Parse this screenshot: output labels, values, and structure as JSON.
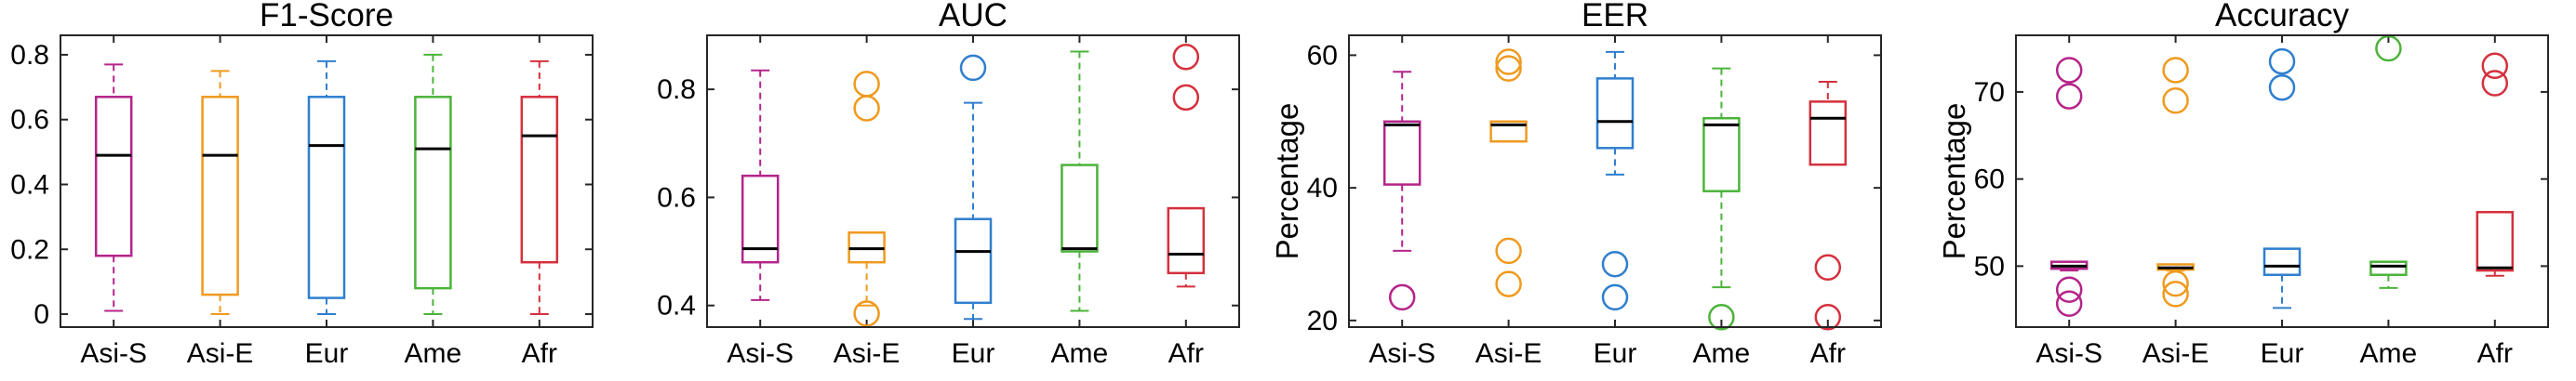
{
  "chart_data": [
    {
      "type": "boxplot",
      "title": "F1-Score",
      "ylabel": "",
      "categories": [
        "Asi-S",
        "Asi-E",
        "Eur",
        "Ame",
        "Afr"
      ],
      "ylim": [
        -0.04,
        0.86
      ],
      "yticks": [
        0,
        0.2,
        0.4,
        0.6,
        0.8
      ],
      "yticklabels": [
        "0",
        "0.2",
        "0.4",
        "0.6",
        "0.8"
      ],
      "boxes": [
        {
          "category": "Asi-S",
          "whisker_low": 0.01,
          "q1": 0.18,
          "median": 0.49,
          "q3": 0.67,
          "whisker_high": 0.77,
          "outliers": []
        },
        {
          "category": "Asi-E",
          "whisker_low": 0.0,
          "q1": 0.06,
          "median": 0.49,
          "q3": 0.67,
          "whisker_high": 0.75,
          "outliers": []
        },
        {
          "category": "Eur",
          "whisker_low": 0.0,
          "q1": 0.05,
          "median": 0.52,
          "q3": 0.67,
          "whisker_high": 0.78,
          "outliers": []
        },
        {
          "category": "Ame",
          "whisker_low": 0.0,
          "q1": 0.08,
          "median": 0.51,
          "q3": 0.67,
          "whisker_high": 0.8,
          "outliers": []
        },
        {
          "category": "Afr",
          "whisker_low": 0.0,
          "q1": 0.16,
          "median": 0.55,
          "q3": 0.67,
          "whisker_high": 0.78,
          "outliers": []
        }
      ]
    },
    {
      "type": "boxplot",
      "title": "AUC",
      "ylabel": "",
      "categories": [
        "Asi-S",
        "Asi-E",
        "Eur",
        "Ame",
        "Afr"
      ],
      "ylim": [
        0.36,
        0.9
      ],
      "yticks": [
        0.4,
        0.6,
        0.8
      ],
      "yticklabels": [
        "0.4",
        "0.6",
        "0.8"
      ],
      "boxes": [
        {
          "category": "Asi-S",
          "whisker_low": 0.41,
          "q1": 0.48,
          "median": 0.505,
          "q3": 0.64,
          "whisker_high": 0.835,
          "outliers": []
        },
        {
          "category": "Asi-E",
          "whisker_low": 0.4,
          "q1": 0.48,
          "median": 0.505,
          "q3": 0.535,
          "whisker_high": 0.535,
          "outliers": [
            0.81,
            0.765,
            0.385
          ]
        },
        {
          "category": "Eur",
          "whisker_low": 0.375,
          "q1": 0.405,
          "median": 0.5,
          "q3": 0.56,
          "whisker_high": 0.775,
          "outliers": [
            0.84
          ]
        },
        {
          "category": "Ame",
          "whisker_low": 0.39,
          "q1": 0.5,
          "median": 0.505,
          "q3": 0.66,
          "whisker_high": 0.87,
          "outliers": []
        },
        {
          "category": "Afr",
          "whisker_low": 0.435,
          "q1": 0.46,
          "median": 0.495,
          "q3": 0.58,
          "whisker_high": 0.58,
          "outliers": [
            0.86,
            0.785
          ]
        }
      ]
    },
    {
      "type": "boxplot",
      "title": "EER",
      "ylabel": "Percentage",
      "categories": [
        "Asi-S",
        "Asi-E",
        "Eur",
        "Ame",
        "Afr"
      ],
      "ylim": [
        19,
        63
      ],
      "yticks": [
        20,
        40,
        60
      ],
      "yticklabels": [
        "20",
        "40",
        "60"
      ],
      "boxes": [
        {
          "category": "Asi-S",
          "whisker_low": 30.5,
          "q1": 40.5,
          "median": 49.5,
          "q3": 50.0,
          "whisker_high": 57.5,
          "outliers": [
            23.5
          ]
        },
        {
          "category": "Asi-E",
          "whisker_low": 47.0,
          "q1": 47.0,
          "median": 49.5,
          "q3": 50.0,
          "whisker_high": 50.0,
          "outliers": [
            59.0,
            58.0,
            30.5,
            25.5
          ]
        },
        {
          "category": "Eur",
          "whisker_low": 42.0,
          "q1": 46.0,
          "median": 50.0,
          "q3": 56.5,
          "whisker_high": 60.5,
          "outliers": [
            28.5,
            23.5
          ]
        },
        {
          "category": "Ame",
          "whisker_low": 25.0,
          "q1": 39.5,
          "median": 49.5,
          "q3": 50.5,
          "whisker_high": 58.0,
          "outliers": [
            20.5
          ]
        },
        {
          "category": "Afr",
          "whisker_low": 43.5,
          "q1": 43.5,
          "median": 50.5,
          "q3": 53.0,
          "whisker_high": 56.0,
          "outliers": [
            28.0,
            20.5
          ]
        }
      ]
    },
    {
      "type": "boxplot",
      "title": "Accuracy",
      "ylabel": "Percentage",
      "categories": [
        "Asi-S",
        "Asi-E",
        "Eur",
        "Ame",
        "Afr"
      ],
      "ylim": [
        43,
        76.5
      ],
      "yticks": [
        50,
        60,
        70
      ],
      "yticklabels": [
        "50",
        "60",
        "70"
      ],
      "boxes": [
        {
          "category": "Asi-S",
          "whisker_low": 49.5,
          "q1": 49.7,
          "median": 50.0,
          "q3": 50.5,
          "whisker_high": 50.5,
          "outliers": [
            72.5,
            69.5,
            47.3,
            45.7
          ]
        },
        {
          "category": "Asi-E",
          "whisker_low": 49.5,
          "q1": 49.6,
          "median": 49.8,
          "q3": 50.2,
          "whisker_high": 50.2,
          "outliers": [
            72.5,
            69.0,
            48.0,
            46.8
          ]
        },
        {
          "category": "Eur",
          "whisker_low": 45.2,
          "q1": 49.0,
          "median": 50.0,
          "q3": 52.0,
          "whisker_high": 52.0,
          "outliers": [
            73.5,
            70.5
          ]
        },
        {
          "category": "Ame",
          "whisker_low": 47.5,
          "q1": 49.0,
          "median": 50.0,
          "q3": 50.5,
          "whisker_high": 50.5,
          "outliers": [
            75.0
          ]
        },
        {
          "category": "Afr",
          "whisker_low": 48.9,
          "q1": 49.5,
          "median": 49.8,
          "q3": 56.2,
          "whisker_high": 56.2,
          "outliers": [
            73.0,
            71.0
          ]
        }
      ]
    }
  ],
  "colors": {
    "Asi-S": "#b5248a",
    "Asi-E": "#ef9a1e",
    "Eur": "#2f7fcf",
    "Ame": "#4bb43a",
    "Afr": "#d5303d",
    "median": "#000000",
    "axis": "#262626"
  }
}
